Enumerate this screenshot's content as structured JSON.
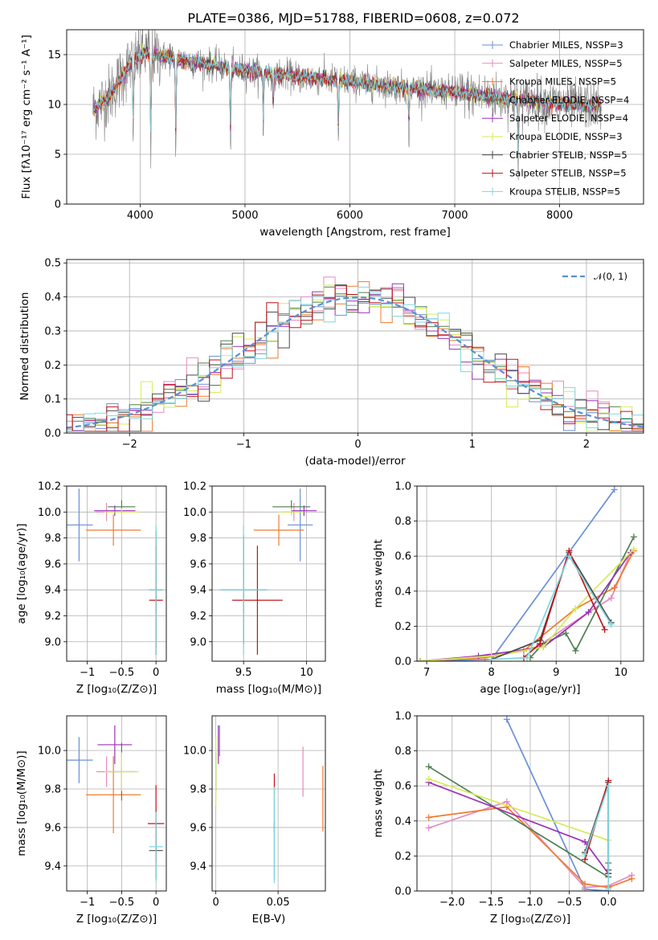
{
  "figure": {
    "title": "PLATE=0386, MJD=51788, FIBERID=0608, z=0.072"
  },
  "chart_data": [
    {
      "id": "spectrum",
      "type": "line",
      "xlabel": "wavelength [Angstrom, rest frame]",
      "ylabel": "Flux [fλ10⁻¹⁷ erg cm⁻² s⁻¹ A⁻¹]",
      "xlim": [
        3300,
        8800
      ],
      "ylim": [
        0,
        17.5
      ],
      "xticks": [
        4000,
        5000,
        6000,
        7000,
        8000
      ],
      "yticks": [
        0,
        5,
        10,
        15
      ],
      "legend_position": "top-right",
      "data_color": "#808080",
      "models": [
        {
          "name": "Chabrier MILES, NSSP=3",
          "color": "#6a8fd8"
        },
        {
          "name": "Salpeter MILES, NSSP=5",
          "color": "#e58ac0"
        },
        {
          "name": "Kroupa MILES, NSSP=5",
          "color": "#ef7b2d"
        },
        {
          "name": "Chabrier ELODIE, NSSP=4",
          "color": "#4f7f4f"
        },
        {
          "name": "Salpeter ELODIE, NSSP=4",
          "color": "#9b30b8"
        },
        {
          "name": "Kroupa ELODIE, NSSP=3",
          "color": "#d6ea5a"
        },
        {
          "name": "Chabrier STELIB, NSSP=5",
          "color": "#4a4a4a"
        },
        {
          "name": "Salpeter STELIB, NSSP=5",
          "color": "#c0141a"
        },
        {
          "name": "Kroupa STELIB, NSSP=5",
          "color": "#7fd6e0"
        }
      ],
      "continuum": [
        [
          3550,
          9.5
        ],
        [
          3700,
          10.8
        ],
        [
          3900,
          14.0
        ],
        [
          4050,
          15.2
        ],
        [
          4300,
          14.6
        ],
        [
          4600,
          14.1
        ],
        [
          5000,
          13.4
        ],
        [
          5500,
          12.8
        ],
        [
          6000,
          12.3
        ],
        [
          6500,
          11.7
        ],
        [
          7000,
          11.2
        ],
        [
          7500,
          10.6
        ],
        [
          8000,
          10.1
        ],
        [
          8400,
          9.8
        ]
      ],
      "absorption_lines": [
        [
          3934,
          7
        ],
        [
          4102,
          9
        ],
        [
          4340,
          8
        ],
        [
          4861,
          7
        ],
        [
          5175,
          5
        ],
        [
          5270,
          3
        ],
        [
          5890,
          5
        ],
        [
          6563,
          4
        ],
        [
          7605,
          6
        ],
        [
          8542,
          3
        ]
      ]
    },
    {
      "id": "residuals",
      "type": "line",
      "xlabel": "(data-model)/error",
      "ylabel": "Normed distribution",
      "xlim": [
        -2.55,
        2.5
      ],
      "ylim": [
        0,
        0.51
      ],
      "xticks": [
        -2,
        -1,
        0,
        1,
        2
      ],
      "yticks": [
        0.0,
        0.1,
        0.2,
        0.3,
        0.4,
        0.5
      ],
      "legend": [
        {
          "name": "𝒩(0, 1)",
          "color": "#5b8fd6",
          "style": "dashed"
        }
      ],
      "legend_position": "top-right",
      "gaussian": {
        "mean": 0,
        "sigma": 1
      }
    },
    {
      "id": "age-vs-z",
      "type": "scatter",
      "xlabel": "Z [log₁₀(Z/Z⊙)]",
      "ylabel": "age  [log₁₀(age/yr)]",
      "xlim": [
        -1.3,
        0.15
      ],
      "ylim": [
        8.85,
        10.2
      ],
      "xticks": [
        -1,
        -0.5,
        0
      ],
      "xticklabels": [
        "−1",
        "−0.5",
        "0"
      ],
      "yticks": [
        9.0,
        9.2,
        9.4,
        9.6,
        9.8,
        10.0,
        10.2
      ],
      "points": [
        {
          "color": "#6a8fd8",
          "x": -1.12,
          "xerr": 0.2,
          "y": 9.9,
          "yerr": 0.28
        },
        {
          "color": "#e58ac0",
          "x": -0.72,
          "xerr": 0.15,
          "y": 10.0,
          "yerr": 0.07
        },
        {
          "color": "#ef7b2d",
          "x": -0.62,
          "xerr": 0.4,
          "y": 9.86,
          "yerr": 0.12
        },
        {
          "color": "#4f7f4f",
          "x": -0.5,
          "xerr": 0.2,
          "y": 10.04,
          "yerr": 0.05
        },
        {
          "color": "#9b30b8",
          "x": -0.6,
          "xerr": 0.3,
          "y": 10.01,
          "yerr": 0.04
        },
        {
          "color": "#d6ea5a",
          "x": -0.5,
          "xerr": 0.25,
          "y": 10.0,
          "yerr": 0.03
        },
        {
          "color": "#4a4a4a",
          "x": 0.0,
          "xerr": 0.1,
          "y": 9.4,
          "yerr": 0.45
        },
        {
          "color": "#c0141a",
          "x": 0.0,
          "xerr": 0.1,
          "y": 9.32,
          "yerr": 0.42
        },
        {
          "color": "#7fd6e0",
          "x": 0.0,
          "xerr": 0.1,
          "y": 9.4,
          "yerr": 0.5
        }
      ]
    },
    {
      "id": "age-vs-mass",
      "type": "scatter",
      "xlabel": "mass [log₁₀(M/M⊙)]",
      "ylabel": "",
      "xlim": [
        9.25,
        10.15
      ],
      "ylim": [
        8.85,
        10.2
      ],
      "xticks": [
        9.5,
        10.0
      ],
      "yticks": [
        9.0,
        9.2,
        9.4,
        9.6,
        9.8,
        10.0,
        10.2
      ],
      "points": [
        {
          "color": "#6a8fd8",
          "x": 9.95,
          "xerr": 0.1,
          "y": 9.9,
          "yerr": 0.28
        },
        {
          "color": "#e58ac0",
          "x": 9.9,
          "xerr": 0.08,
          "y": 10.0,
          "yerr": 0.07
        },
        {
          "color": "#ef7b2d",
          "x": 9.78,
          "xerr": 0.2,
          "y": 9.86,
          "yerr": 0.12
        },
        {
          "color": "#4f7f4f",
          "x": 9.88,
          "xerr": 0.15,
          "y": 10.04,
          "yerr": 0.05
        },
        {
          "color": "#9b30b8",
          "x": 9.98,
          "xerr": 0.1,
          "y": 10.01,
          "yerr": 0.04
        },
        {
          "color": "#d6ea5a",
          "x": 9.88,
          "xerr": 0.1,
          "y": 10.0,
          "yerr": 0.03
        },
        {
          "color": "#4a4a4a",
          "x": 9.5,
          "xerr": 0.18,
          "y": 9.4,
          "yerr": 0.42
        },
        {
          "color": "#c0141a",
          "x": 9.61,
          "xerr": 0.2,
          "y": 9.32,
          "yerr": 0.42
        },
        {
          "color": "#7fd6e0",
          "x": 9.5,
          "xerr": 0.2,
          "y": 9.4,
          "yerr": 0.5
        }
      ]
    },
    {
      "id": "weight-vs-age",
      "type": "line",
      "xlabel": "age  [log₁₀(age/yr)]",
      "ylabel": "mass weight",
      "xlim": [
        6.85,
        10.35
      ],
      "ylim": [
        0,
        1.0
      ],
      "xticks": [
        7,
        8,
        9,
        10
      ],
      "yticks": [
        0.0,
        0.2,
        0.4,
        0.6,
        0.8,
        1.0
      ],
      "series": [
        {
          "color": "#6a8fd8",
          "x": [
            6.9,
            8.0,
            9.9
          ],
          "y": [
            0.0,
            0.01,
            0.98
          ]
        },
        {
          "color": "#e58ac0",
          "x": [
            6.9,
            7.8,
            8.7,
            9.5,
            9.85,
            10.15
          ],
          "y": [
            0.0,
            0.02,
            0.08,
            0.28,
            0.36,
            0.62
          ]
        },
        {
          "color": "#ef7b2d",
          "x": [
            6.9,
            7.9,
            8.5,
            9.3,
            9.9,
            10.2
          ],
          "y": [
            0.0,
            0.02,
            0.06,
            0.3,
            0.42,
            0.63
          ]
        },
        {
          "color": "#4f7f4f",
          "x": [
            8.6,
            8.8,
            9.15,
            9.3,
            10.2
          ],
          "y": [
            0.02,
            0.1,
            0.16,
            0.06,
            0.71
          ]
        },
        {
          "color": "#9b30b8",
          "x": [
            6.9,
            7.8,
            8.8,
            9.5,
            10.15
          ],
          "y": [
            0.0,
            0.03,
            0.08,
            0.28,
            0.62
          ]
        },
        {
          "color": "#d6ea5a",
          "x": [
            6.9,
            8.0,
            8.8,
            9.3,
            10.2
          ],
          "y": [
            0.0,
            0.03,
            0.08,
            0.3,
            0.64
          ]
        },
        {
          "color": "#4a4a4a",
          "x": [
            8.0,
            8.75,
            9.2,
            9.85
          ],
          "y": [
            0.01,
            0.12,
            0.62,
            0.22
          ]
        },
        {
          "color": "#c0141a",
          "x": [
            8.5,
            8.75,
            9.2,
            9.75
          ],
          "y": [
            0.02,
            0.1,
            0.63,
            0.18
          ]
        },
        {
          "color": "#7fd6e0",
          "x": [
            8.0,
            8.55,
            9.2,
            9.85
          ],
          "y": [
            0.01,
            0.02,
            0.6,
            0.21
          ]
        }
      ]
    },
    {
      "id": "mass-vs-z",
      "type": "scatter",
      "xlabel": "Z [log₁₀(Z/Z⊙)]",
      "ylabel": "mass [log₁₀(M/M⊙)]",
      "xlim": [
        -1.3,
        0.15
      ],
      "ylim": [
        9.27,
        10.18
      ],
      "xticks": [
        -1,
        -0.5,
        0
      ],
      "xticklabels": [
        "−1",
        "−0.5",
        "0"
      ],
      "yticks": [
        9.4,
        9.6,
        9.8,
        10.0
      ],
      "points": [
        {
          "color": "#6a8fd8",
          "x": -1.12,
          "xerr": 0.2,
          "y": 9.95,
          "yerr": 0.12
        },
        {
          "color": "#e58ac0",
          "x": -0.72,
          "xerr": 0.15,
          "y": 9.89,
          "yerr": 0.08
        },
        {
          "color": "#ef7b2d",
          "x": -0.62,
          "xerr": 0.4,
          "y": 9.77,
          "yerr": 0.2
        },
        {
          "color": "#4f7f4f",
          "x": -0.5,
          "xerr": 0.2,
          "y": 9.89,
          "yerr": 0.15
        },
        {
          "color": "#9b30b8",
          "x": -0.6,
          "xerr": 0.25,
          "y": 10.03,
          "yerr": 0.1
        },
        {
          "color": "#d6ea5a",
          "x": -0.5,
          "xerr": 0.25,
          "y": 9.89,
          "yerr": 0.1
        },
        {
          "color": "#4a4a4a",
          "x": 0.0,
          "xerr": 0.1,
          "y": 9.48,
          "yerr": 0.15
        },
        {
          "color": "#c0141a",
          "x": 0.0,
          "xerr": 0.12,
          "y": 9.62,
          "yerr": 0.2
        },
        {
          "color": "#7fd6e0",
          "x": 0.0,
          "xerr": 0.1,
          "y": 9.5,
          "yerr": 0.18
        }
      ]
    },
    {
      "id": "mass-vs-ebv",
      "type": "scatter",
      "xlabel": "E(B-V)",
      "ylabel": "",
      "xlim": [
        -0.003,
        0.088
      ],
      "ylim": [
        9.27,
        10.18
      ],
      "xticks": [
        0.0,
        0.05
      ],
      "yticks": [
        9.4,
        9.6,
        9.8,
        10.0
      ],
      "points": [
        {
          "color": "#6a8fd8",
          "x": 0.003,
          "xerr": 0,
          "y": 10.05,
          "yerr": 0.08
        },
        {
          "color": "#e58ac0",
          "x": 0.07,
          "xerr": 0,
          "y": 9.89,
          "yerr": 0.13
        },
        {
          "color": "#ef7b2d",
          "x": 0.086,
          "xerr": 0,
          "y": 9.75,
          "yerr": 0.17
        },
        {
          "color": "#4f7f4f",
          "x": 0.0,
          "xerr": 0,
          "y": 9.89,
          "yerr": 0.1
        },
        {
          "color": "#9b30b8",
          "x": 0.002,
          "xerr": 0,
          "y": 10.03,
          "yerr": 0.1
        },
        {
          "color": "#d6ea5a",
          "x": 0.0,
          "xerr": 0,
          "y": 9.89,
          "yerr": 0.18
        },
        {
          "color": "#4a4a4a",
          "x": 0.047,
          "xerr": 0,
          "y": 9.48,
          "yerr": 0.15
        },
        {
          "color": "#c0141a",
          "x": 0.047,
          "xerr": 0,
          "y": 9.73,
          "yerr": 0.15
        },
        {
          "color": "#7fd6e0",
          "x": 0.047,
          "xerr": 0,
          "y": 9.56,
          "yerr": 0.25
        }
      ]
    },
    {
      "id": "weight-vs-z",
      "type": "line",
      "xlabel": "Z [log₁₀(Z/Z⊙)]",
      "ylabel": "mass weight",
      "xlim": [
        -2.45,
        0.45
      ],
      "ylim": [
        0,
        1.0
      ],
      "xticks": [
        -2.0,
        -1.5,
        -1.0,
        -0.5,
        0.0
      ],
      "xticklabels": [
        "−2.0",
        "−1.5",
        "−1.0",
        "−0.5",
        "0.0"
      ],
      "yticks": [
        0.0,
        0.2,
        0.4,
        0.6,
        0.8,
        1.0
      ],
      "series": [
        {
          "color": "#6a8fd8",
          "x": [
            -1.3,
            -0.3,
            0.0
          ],
          "y": [
            0.98,
            0.01,
            0.0
          ]
        },
        {
          "color": "#e58ac0",
          "x": [
            -2.3,
            -1.3,
            -0.3,
            0.0,
            0.3
          ],
          "y": [
            0.36,
            0.51,
            0.02,
            0.03,
            0.09
          ]
        },
        {
          "color": "#ef7b2d",
          "x": [
            -2.3,
            -1.3,
            -0.3,
            0.0,
            0.3
          ],
          "y": [
            0.42,
            0.48,
            0.04,
            0.02,
            0.07
          ]
        },
        {
          "color": "#4f7f4f",
          "x": [
            -2.3,
            0.0,
            0.0
          ],
          "y": [
            0.71,
            0.08,
            0.16
          ]
        },
        {
          "color": "#9b30b8",
          "x": [
            -2.3,
            -0.3,
            0.0
          ],
          "y": [
            0.62,
            0.28,
            0.1
          ]
        },
        {
          "color": "#d6ea5a",
          "x": [
            -2.3,
            0.0
          ],
          "y": [
            0.64,
            0.29
          ]
        },
        {
          "color": "#4a4a4a",
          "x": [
            -0.3,
            0.0,
            0.0
          ],
          "y": [
            0.22,
            0.62,
            0.12
          ]
        },
        {
          "color": "#c0141a",
          "x": [
            -0.3,
            0.0,
            0.0
          ],
          "y": [
            0.18,
            0.63,
            0.1
          ]
        },
        {
          "color": "#7fd6e0",
          "x": [
            -0.3,
            0.0,
            0.0
          ],
          "y": [
            0.21,
            0.6,
            0.01
          ]
        }
      ]
    }
  ]
}
